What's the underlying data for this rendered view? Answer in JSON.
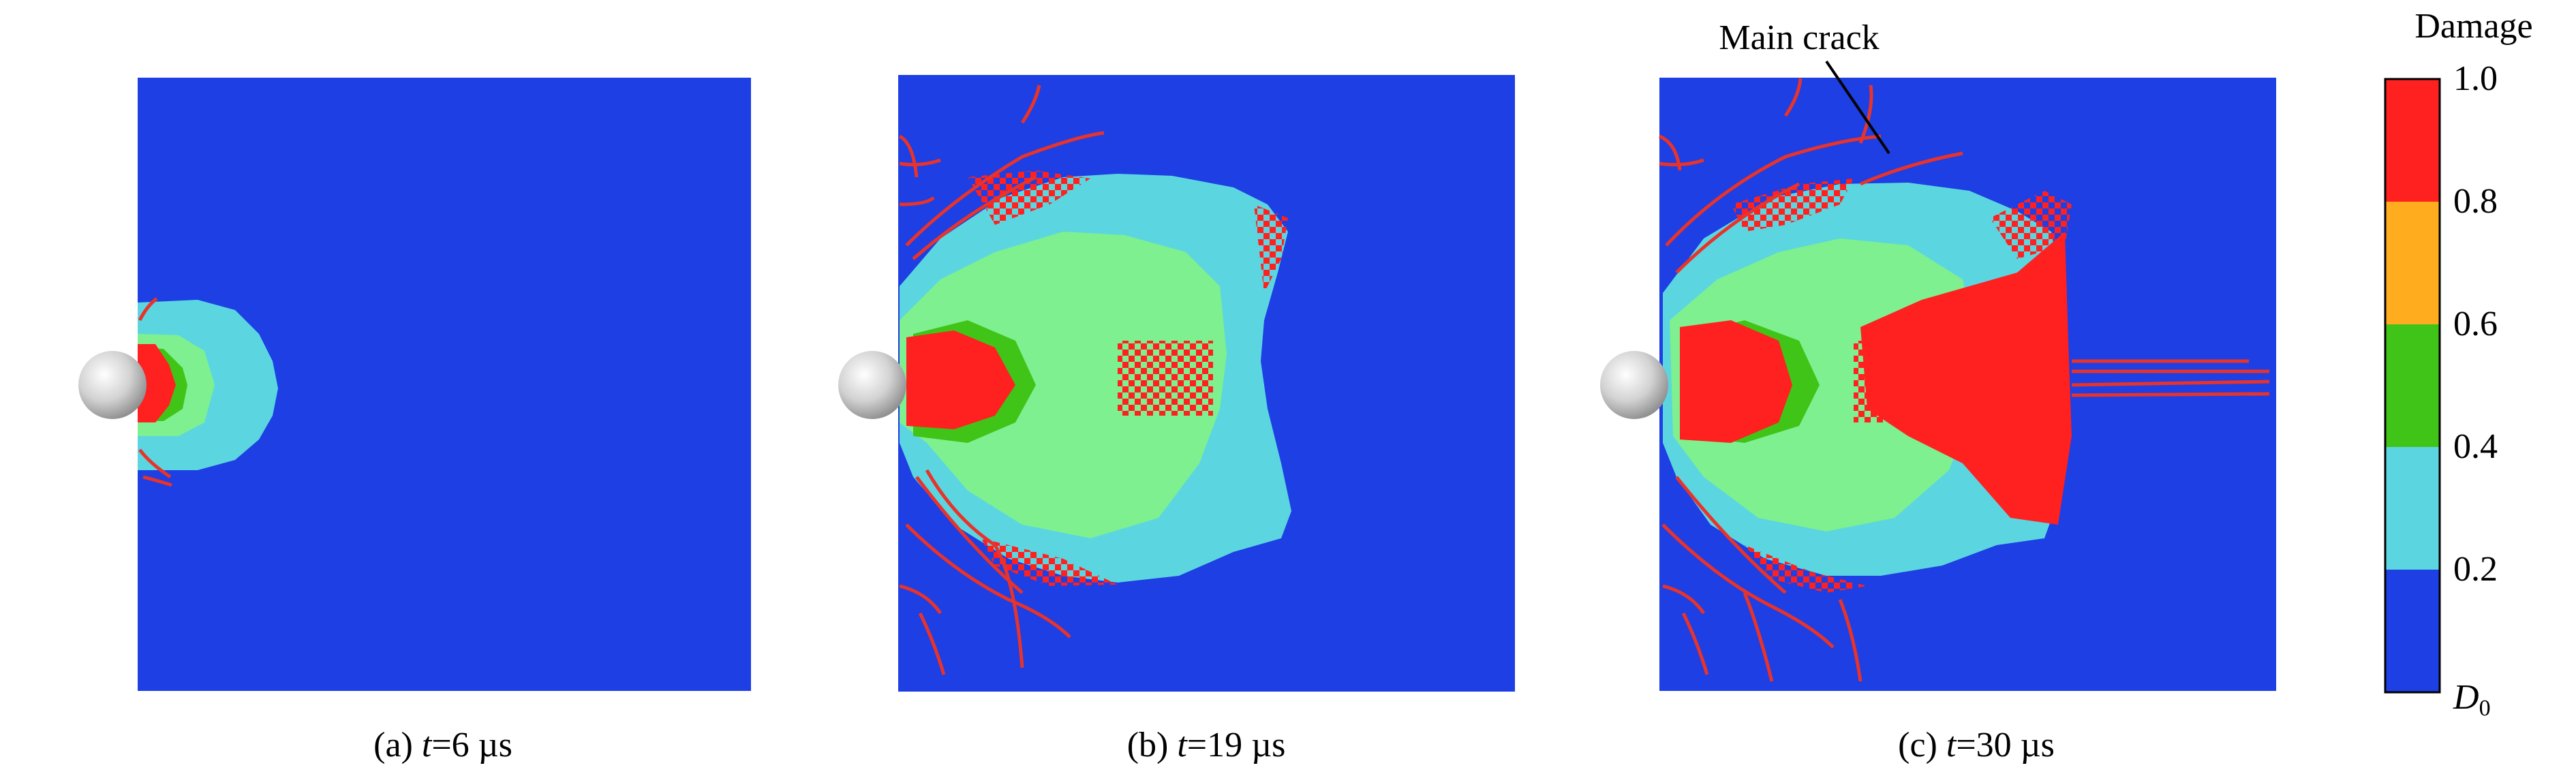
{
  "panels": [
    {
      "id": "a",
      "caption_prefix": "(a) ",
      "caption_var": "t",
      "caption_value": "=6 µs"
    },
    {
      "id": "b",
      "caption_prefix": "(b) ",
      "caption_var": "t",
      "caption_value": "=19 µs"
    },
    {
      "id": "c",
      "caption_prefix": "(c) ",
      "caption_var": "t",
      "caption_value": "=30 µs"
    }
  ],
  "annotation": {
    "main_crack": "Main crack"
  },
  "colorbar": {
    "title": "Damage",
    "tick_labels": [
      "1.0",
      "0.8",
      "0.6",
      "0.4",
      "0.2"
    ],
    "bottom_label_main": "D",
    "bottom_label_sub": "0",
    "bands_top_to_bottom": [
      "#ff2020",
      "#ffad1f",
      "#40c418",
      "#5bd6e0",
      "#1d3fe3"
    ]
  },
  "colors": {
    "background_damage": "#1d3fe3",
    "damage_0_2_0_4": "#5bd6e0",
    "damage_0_4_0_6": "#7ef08f",
    "damage_0_6_0_8": "#40c418",
    "damage_0_8_1_0": "#ff2020",
    "crack": "#e8332c",
    "projectile": "#d9d9d9"
  }
}
